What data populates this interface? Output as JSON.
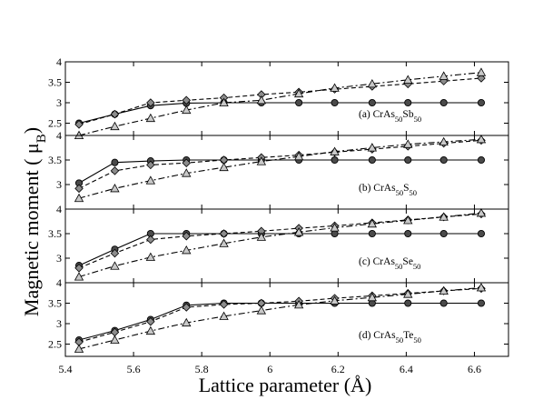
{
  "chart_data": {
    "type": "line",
    "xlabel": "Lattice parameter (Å)",
    "ylabel_main": "Magnetic moment ( μ",
    "ylabel_sub": "B",
    "ylabel_close": ")",
    "xlim": [
      5.4,
      6.7
    ],
    "x_ticks": [
      5.4,
      5.6,
      5.8,
      6,
      6.2,
      6.4,
      6.6
    ],
    "x_tick_labels": [
      "5.4",
      "5.6",
      "5.8",
      "6",
      "6.2",
      "6.4",
      "6.6"
    ],
    "x": [
      5.44,
      5.545,
      5.65,
      5.755,
      5.865,
      5.975,
      6.085,
      6.19,
      6.3,
      6.405,
      6.51,
      6.62
    ],
    "panels": [
      {
        "label_prefix": "(a) CrAs",
        "sub1": "50",
        "mid": "Sb",
        "sub2": "50",
        "ylim": [
          2.2,
          4.0
        ],
        "y_ticks": [
          2.5,
          3,
          3.5,
          4
        ],
        "y_tick_labels": [
          "2.5",
          "3",
          "3.5",
          "4"
        ],
        "series": [
          {
            "marker": "circle",
            "line": "solid",
            "values": [
              2.5,
              2.72,
              2.93,
              2.99,
              3.0,
              3.0,
              3.0,
              3.0,
              3.0,
              3.0,
              3.0,
              3.0
            ]
          },
          {
            "marker": "diamond",
            "line": "dashed",
            "values": [
              2.47,
              2.72,
              3.0,
              3.06,
              3.12,
              3.2,
              3.26,
              3.33,
              3.4,
              3.46,
              3.53,
              3.6
            ]
          },
          {
            "marker": "triangle",
            "line": "dashdot",
            "values": [
              2.2,
              2.42,
              2.62,
              2.82,
              3.0,
              3.06,
              3.22,
              3.36,
              3.46,
              3.56,
              3.65,
              3.74
            ]
          }
        ]
      },
      {
        "label_prefix": "(b) CrAs",
        "sub1": "50",
        "mid": "S",
        "sub2": "50",
        "ylim": [
          2.5,
          4.0
        ],
        "y_ticks": [
          3,
          3.5,
          4
        ],
        "y_tick_labels": [
          "3",
          "3.5",
          "4"
        ],
        "series": [
          {
            "marker": "circle",
            "line": "solid",
            "values": [
              3.03,
              3.45,
              3.48,
              3.5,
              3.5,
              3.5,
              3.5,
              3.5,
              3.5,
              3.5,
              3.5,
              3.5
            ]
          },
          {
            "marker": "diamond",
            "line": "dashed",
            "values": [
              2.92,
              3.28,
              3.4,
              3.44,
              3.5,
              3.55,
              3.6,
              3.66,
              3.72,
              3.78,
              3.84,
              3.9
            ]
          },
          {
            "marker": "triangle",
            "line": "dashdot",
            "values": [
              2.72,
              2.92,
              3.08,
              3.23,
              3.35,
              3.47,
              3.57,
              3.67,
              3.75,
              3.82,
              3.87,
              3.92
            ]
          }
        ]
      },
      {
        "label_prefix": "(c) CrAs",
        "sub1": "50",
        "mid": "Se",
        "sub2": "50",
        "ylim": [
          2.5,
          4.0
        ],
        "y_ticks": [
          3,
          3.5,
          4
        ],
        "y_tick_labels": [
          "3",
          "3.5",
          "4"
        ],
        "series": [
          {
            "marker": "circle",
            "line": "solid",
            "values": [
              2.85,
              3.18,
              3.5,
              3.5,
              3.5,
              3.5,
              3.5,
              3.5,
              3.5,
              3.5,
              3.5,
              3.5
            ]
          },
          {
            "marker": "diamond",
            "line": "dashed",
            "values": [
              2.8,
              3.1,
              3.38,
              3.45,
              3.5,
              3.55,
              3.61,
              3.66,
              3.72,
              3.78,
              3.84,
              3.9
            ]
          },
          {
            "marker": "triangle",
            "line": "dashdot",
            "values": [
              2.62,
              2.84,
              3.02,
              3.16,
              3.3,
              3.43,
              3.53,
              3.62,
              3.7,
              3.77,
              3.84,
              3.92
            ]
          }
        ]
      },
      {
        "label_prefix": "(d) CrAs",
        "sub1": "50",
        "mid": "Te",
        "sub2": "50",
        "ylim": [
          2.2,
          4.0
        ],
        "y_ticks": [
          2.5,
          3,
          3.5,
          4
        ],
        "y_tick_labels": [
          "2.5",
          "3",
          "3.5",
          "4"
        ],
        "series": [
          {
            "marker": "circle",
            "line": "solid",
            "values": [
              2.6,
              2.83,
              3.1,
              3.45,
              3.5,
              3.5,
              3.5,
              3.5,
              3.5,
              3.5,
              3.5,
              3.5
            ]
          },
          {
            "marker": "diamond",
            "line": "dashed",
            "values": [
              2.55,
              2.79,
              3.05,
              3.4,
              3.47,
              3.5,
              3.55,
              3.62,
              3.68,
              3.74,
              3.8,
              3.86
            ]
          },
          {
            "marker": "triangle",
            "line": "dashdot",
            "values": [
              2.38,
              2.6,
              2.82,
              3.02,
              3.18,
              3.32,
              3.46,
              3.56,
              3.64,
              3.72,
              3.8,
              3.88
            ]
          }
        ]
      }
    ]
  }
}
